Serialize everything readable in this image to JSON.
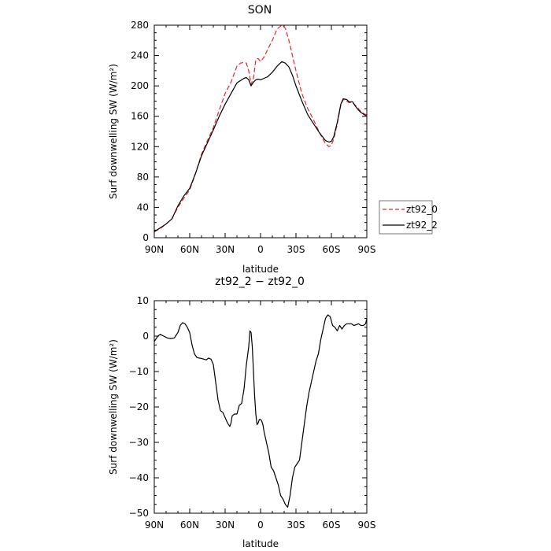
{
  "chart_data": [
    {
      "type": "line",
      "title": "SON",
      "xlabel": "latitude",
      "ylabel": "Surf downwelling SW (W/m²)",
      "xlim": [
        90,
        -90
      ],
      "ylim": [
        0,
        280
      ],
      "x_ticks": [
        90,
        60,
        30,
        0,
        -30,
        -60,
        -90
      ],
      "x_tick_labels": [
        "90N",
        "60N",
        "30N",
        "0",
        "30S",
        "60S",
        "90S"
      ],
      "y_ticks": [
        0,
        40,
        80,
        120,
        160,
        200,
        240,
        280
      ],
      "y_tick_labels": [
        "0",
        "40",
        "80",
        "120",
        "160",
        "200",
        "240",
        "280"
      ],
      "legend": "outside-right",
      "series": [
        {
          "name": "zt92_0",
          "color": "#e8262d",
          "dash": "dashed",
          "x": [
            90,
            85,
            80,
            75,
            70,
            65,
            60,
            55,
            50,
            45,
            40,
            35,
            30,
            25,
            20,
            17,
            14,
            12,
            10,
            8,
            6,
            4,
            2,
            0,
            -3,
            -6,
            -10,
            -14,
            -18,
            -21,
            -24,
            -27,
            -30,
            -35,
            -40,
            -45,
            -50,
            -55,
            -58,
            -60,
            -62,
            -65,
            -68,
            -70,
            -73,
            -75,
            -78,
            -80,
            -83,
            -85,
            -88,
            -90
          ],
          "y": [
            8,
            12,
            18,
            25,
            40,
            52,
            63,
            85,
            110,
            128,
            145,
            168,
            190,
            205,
            226,
            230,
            231,
            230,
            220,
            202,
            210,
            235,
            236,
            232,
            238,
            248,
            260,
            275,
            280,
            276,
            260,
            240,
            220,
            190,
            170,
            155,
            138,
            124,
            120,
            122,
            130,
            150,
            175,
            182,
            180,
            178,
            178,
            175,
            170,
            166,
            163,
            162
          ]
        },
        {
          "name": "zt92_2",
          "color": "#000000",
          "dash": "solid",
          "x": [
            90,
            85,
            80,
            75,
            70,
            65,
            60,
            55,
            50,
            45,
            40,
            35,
            30,
            25,
            20,
            17,
            14,
            12,
            10,
            8,
            6,
            4,
            2,
            0,
            -3,
            -6,
            -10,
            -14,
            -18,
            -21,
            -24,
            -27,
            -30,
            -35,
            -40,
            -45,
            -50,
            -55,
            -58,
            -60,
            -62,
            -65,
            -68,
            -70,
            -73,
            -75,
            -78,
            -80,
            -83,
            -85,
            -88,
            -90
          ],
          "y": [
            8,
            13,
            18,
            25,
            42,
            55,
            65,
            85,
            108,
            125,
            142,
            160,
            176,
            190,
            204,
            207,
            210,
            211,
            208,
            200,
            205,
            208,
            209,
            208,
            210,
            212,
            218,
            226,
            232,
            230,
            225,
            214,
            200,
            180,
            162,
            150,
            138,
            128,
            126,
            127,
            133,
            152,
            176,
            183,
            182,
            179,
            179,
            174,
            168,
            165,
            162,
            160
          ]
        }
      ]
    },
    {
      "type": "line",
      "title": "zt92_2 − zt92_0",
      "xlabel": "latitude",
      "ylabel": "Surf downwelling SW (W/m²)",
      "xlim": [
        90,
        -90
      ],
      "ylim": [
        -50,
        10
      ],
      "x_ticks": [
        90,
        60,
        30,
        0,
        -30,
        -60,
        -90
      ],
      "x_tick_labels": [
        "90N",
        "60N",
        "30N",
        "0",
        "30S",
        "60S",
        "90S"
      ],
      "y_ticks": [
        -50,
        -40,
        -30,
        -20,
        -10,
        0,
        10
      ],
      "y_tick_labels": [
        "−50",
        "−40",
        "−30",
        "−20",
        "−10",
        "0",
        "10"
      ],
      "series": [
        {
          "color": "#000000",
          "dash": "solid",
          "x": [
            90,
            87,
            85,
            82,
            79,
            76,
            73,
            70,
            68,
            66,
            64,
            62,
            60,
            58,
            56,
            54,
            52,
            50,
            48,
            46,
            44,
            42,
            40,
            38,
            36,
            34,
            32,
            30,
            28,
            26,
            25,
            24,
            22,
            20,
            18,
            16,
            14,
            12,
            10,
            9,
            8,
            7,
            6,
            5,
            4,
            3,
            2,
            1,
            0,
            -1,
            -2,
            -3,
            -5,
            -7,
            -9,
            -11,
            -13,
            -15,
            -17,
            -19,
            -21,
            -23,
            -25,
            -27,
            -29,
            -31,
            -33,
            -35,
            -37,
            -39,
            -41,
            -43,
            -45,
            -47,
            -49,
            -51,
            -53,
            -55,
            -57,
            -59,
            -61,
            -63,
            -65,
            -67,
            -69,
            -71,
            -73,
            -75,
            -77,
            -79,
            -81,
            -83,
            -85,
            -87,
            -89,
            -90
          ],
          "y": [
            -1.5,
            0,
            0.5,
            0,
            -0.5,
            -0.7,
            -0.5,
            1,
            3,
            3.8,
            3.5,
            2.5,
            1,
            -2.5,
            -5,
            -6,
            -6.2,
            -6.3,
            -6.5,
            -6.7,
            -6.2,
            -6.5,
            -8,
            -13,
            -18,
            -21,
            -21.5,
            -23,
            -24.5,
            -25.5,
            -24.5,
            -22.5,
            -22,
            -22,
            -19.5,
            -19,
            -15,
            -8,
            -3,
            1.5,
            1,
            -3,
            -10,
            -17,
            -22,
            -25,
            -24.5,
            -23.5,
            -23.5,
            -24,
            -25,
            -27,
            -30,
            -33,
            -37,
            -38,
            -40,
            -42,
            -45,
            -46,
            -47.5,
            -48.3,
            -45,
            -40,
            -37,
            -36,
            -35,
            -30,
            -25,
            -20,
            -16,
            -13,
            -10,
            -7,
            -5,
            -1,
            2,
            5,
            6,
            5.5,
            3,
            2.5,
            1.5,
            3,
            2,
            3,
            3.5,
            3.5,
            3.5,
            3,
            3.2,
            3.5,
            3,
            3,
            3.5,
            5
          ]
        }
      ]
    }
  ]
}
